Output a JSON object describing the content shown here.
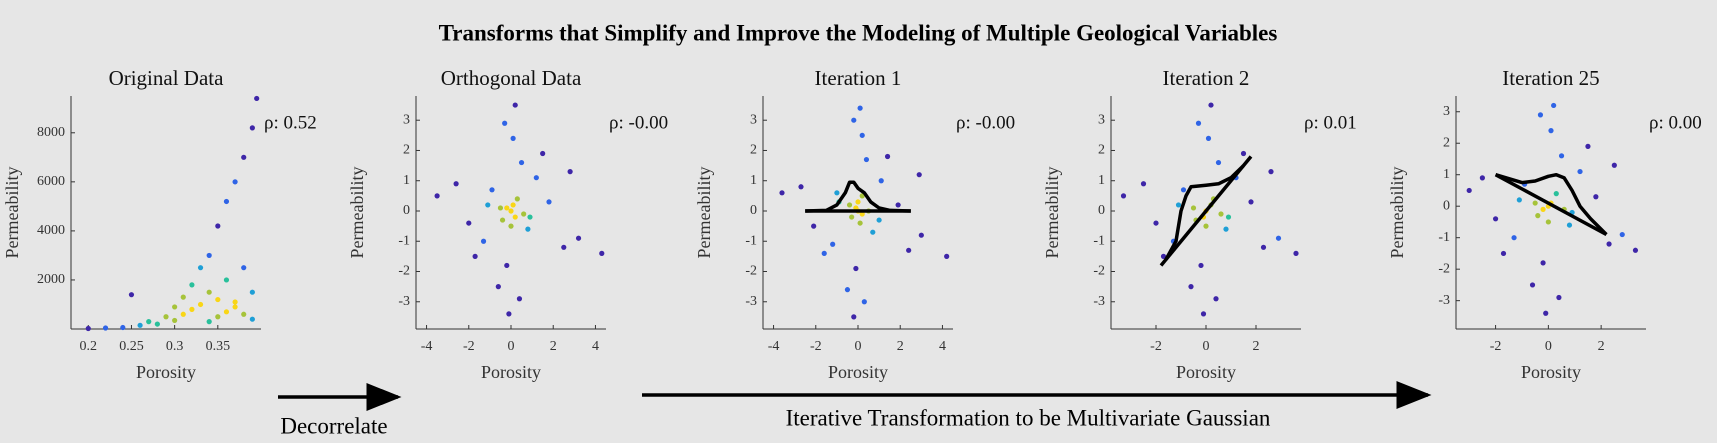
{
  "title": "Transforms that Simplify and Improve the Modeling of Multiple Geological Variables",
  "annotations": [
    "Decorrelate",
    "Iterative Transformation to be Multivariate Gaussian"
  ],
  "colormap": [
    "#3e26a8",
    "#2f64e6",
    "#1f9fd6",
    "#29c09b",
    "#a6c33a",
    "#f9d616"
  ],
  "chart_data": [
    {
      "type": "scatter",
      "title": "Original Data",
      "x_label": "Porosity",
      "y_label": "Permeability",
      "annotation": "ρ: 0.52",
      "xlim": [
        0.18,
        0.4
      ],
      "xticks": [
        0.2,
        0.25,
        0.3,
        0.35
      ],
      "ylim": [
        0,
        9500
      ],
      "yticks": [
        2000,
        4000,
        6000,
        8000
      ],
      "x": [
        0.2,
        0.22,
        0.24,
        0.25,
        0.26,
        0.27,
        0.28,
        0.29,
        0.3,
        0.3,
        0.31,
        0.31,
        0.32,
        0.32,
        0.33,
        0.33,
        0.34,
        0.34,
        0.35,
        0.35,
        0.36,
        0.36,
        0.37,
        0.37,
        0.38,
        0.38,
        0.39,
        0.39,
        0.395,
        0.39,
        0.36,
        0.37,
        0.38,
        0.35,
        0.34
      ],
      "y": [
        20,
        40,
        60,
        1400,
        150,
        300,
        200,
        500,
        350,
        900,
        600,
        1300,
        800,
        1800,
        1000,
        2500,
        1500,
        3000,
        1200,
        4200,
        2000,
        5200,
        900,
        6000,
        2500,
        7000,
        1500,
        8200,
        9400,
        400,
        700,
        1100,
        600,
        500,
        300
      ],
      "lines": []
    },
    {
      "type": "scatter",
      "title": "Orthogonal Data",
      "x_label": "Porosity",
      "y_label": "Permeability",
      "annotation": "ρ: -0.00",
      "xlim": [
        -4.5,
        4.5
      ],
      "xticks": [
        -4,
        -2,
        0,
        2,
        4
      ],
      "ylim": [
        -3.9,
        3.8
      ],
      "yticks": [
        -3,
        -2,
        -1,
        0,
        1,
        2,
        3
      ],
      "x": [
        0,
        0.3,
        -0.4,
        0.8,
        -0.9,
        1.2,
        -1.3,
        0.5,
        -0.2,
        1.8,
        -2.0,
        2.5,
        -2.6,
        0.1,
        -0.6,
        0.9,
        -1.1,
        3.2,
        -3.5,
        4.3,
        0.2,
        -0.1,
        1.5,
        -1.7,
        0.6,
        -0.5,
        2.8,
        -0.3,
        0.4,
        0,
        0.1,
        -0.2,
        0.2
      ],
      "y": [
        0,
        0.4,
        -0.3,
        -0.6,
        0.7,
        1.1,
        -1.0,
        1.6,
        -1.8,
        0.3,
        -0.4,
        -1.2,
        0.9,
        2.4,
        -2.5,
        -0.2,
        0.2,
        -0.9,
        0.5,
        -1.4,
        3.5,
        -3.4,
        1.9,
        -1.5,
        -0.1,
        0.1,
        1.3,
        2.9,
        -2.9,
        -0.5,
        0.2,
        0.1,
        -0.2
      ],
      "lines": []
    },
    {
      "type": "scatter",
      "title": "Iteration 1",
      "x_label": "Porosity",
      "y_label": "Permeability",
      "annotation": "ρ: -0.00",
      "xlim": [
        -4.5,
        4.5
      ],
      "xticks": [
        -4,
        -2,
        0,
        2,
        4
      ],
      "ylim": [
        -3.9,
        3.8
      ],
      "yticks": [
        -3,
        -2,
        -1,
        0,
        1,
        2,
        3
      ],
      "x": [
        0,
        0.2,
        -0.3,
        0.7,
        -1.0,
        1.1,
        -1.2,
        0.4,
        -0.1,
        1.9,
        -2.1,
        2.4,
        -2.7,
        0.2,
        -0.5,
        1.0,
        -0.9,
        3.0,
        -3.6,
        4.2,
        0.1,
        -0.2,
        1.4,
        -1.6,
        0.5,
        -0.4,
        2.9,
        -0.2,
        0.3,
        0.1,
        -0.1,
        0.2,
        0
      ],
      "y": [
        0,
        0.5,
        -0.2,
        -0.7,
        0.6,
        1.0,
        -1.1,
        1.7,
        -1.9,
        0.2,
        -0.5,
        -1.3,
        0.8,
        2.5,
        -2.6,
        -0.3,
        0.3,
        -0.8,
        0.6,
        -1.5,
        3.4,
        -3.5,
        1.8,
        -1.4,
        0,
        0.2,
        1.2,
        3.0,
        -3.0,
        -0.4,
        0.1,
        -0.1,
        0.3
      ],
      "lines": [
        {
          "x": [
            -2.5,
            2.5
          ],
          "y": [
            0,
            0
          ]
        },
        {
          "x": [
            -2.5,
            -1.5,
            -1,
            -0.6,
            -0.4,
            -0.2,
            0,
            0.3,
            0.6,
            1,
            1.5,
            2.5
          ],
          "y": [
            0,
            0.02,
            0.2,
            0.6,
            0.95,
            0.95,
            0.75,
            0.6,
            0.3,
            0.1,
            0.02,
            0
          ]
        }
      ]
    },
    {
      "type": "scatter",
      "title": "Iteration 2",
      "x_label": "Porosity",
      "y_label": "Permeability",
      "annotation": "ρ: 0.01",
      "xlim": [
        -3.8,
        3.8
      ],
      "xticks": [
        -2,
        0,
        2
      ],
      "ylim": [
        -3.9,
        3.8
      ],
      "yticks": [
        -3,
        -2,
        -1,
        0,
        1,
        2,
        3
      ],
      "x": [
        0,
        0.3,
        -0.4,
        0.8,
        -0.9,
        1.2,
        -1.3,
        0.5,
        -0.2,
        1.8,
        -2.0,
        2.3,
        -2.5,
        0.1,
        -0.6,
        0.9,
        -1.1,
        2.9,
        -3.3,
        3.6,
        0.2,
        -0.1,
        1.5,
        -1.7,
        0.6,
        -0.5,
        2.6,
        -0.3,
        0.4,
        0,
        0.2,
        -0.1
      ],
      "y": [
        0,
        0.4,
        -0.3,
        -0.6,
        0.7,
        1.1,
        -1.0,
        1.6,
        -1.8,
        0.3,
        -0.4,
        -1.2,
        0.9,
        2.4,
        -2.5,
        -0.2,
        0.2,
        -0.9,
        0.5,
        -1.4,
        3.5,
        -3.4,
        1.9,
        -1.5,
        -0.1,
        0.1,
        1.3,
        2.9,
        -2.9,
        -0.5,
        0.2,
        -0.2
      ],
      "lines": [
        {
          "x": [
            -1.8,
            1.8
          ],
          "y": [
            -1.8,
            1.8
          ]
        },
        {
          "x": [
            -1.6,
            -1.2,
            -1.0,
            -0.8,
            -0.6,
            0,
            0.5,
            1,
            1.5
          ],
          "y": [
            -1.6,
            -1.0,
            0,
            0.5,
            0.8,
            0.85,
            0.9,
            1.1,
            1.5
          ]
        }
      ]
    },
    {
      "type": "scatter",
      "title": "Iteration 25",
      "x_label": "Porosity",
      "y_label": "Permeability",
      "annotation": "ρ: 0.00",
      "xlim": [
        -3.5,
        3.7
      ],
      "xticks": [
        -2,
        0,
        2
      ],
      "ylim": [
        -3.9,
        3.5
      ],
      "yticks": [
        -3,
        -2,
        -1,
        0,
        1,
        2,
        3
      ],
      "x": [
        0,
        0.3,
        -0.4,
        0.8,
        -0.9,
        1.2,
        -1.3,
        0.5,
        -0.2,
        1.8,
        -2.0,
        2.3,
        -2.5,
        0.1,
        -0.6,
        0.9,
        -1.1,
        2.8,
        -3.0,
        3.3,
        0.2,
        -0.1,
        1.5,
        -1.7,
        0.6,
        -0.5,
        2.5,
        -0.3,
        0.4,
        0,
        0.1,
        -0.2
      ],
      "y": [
        0,
        0.4,
        -0.3,
        -0.6,
        0.7,
        1.1,
        -1.0,
        1.6,
        -1.8,
        0.3,
        -0.4,
        -1.2,
        0.9,
        2.4,
        -2.5,
        -0.2,
        0.2,
        -0.9,
        0.5,
        -1.4,
        3.2,
        -3.4,
        1.9,
        -1.5,
        -0.1,
        0.1,
        1.3,
        2.9,
        -2.9,
        -0.5,
        0.1,
        -0.1
      ],
      "lines": [
        {
          "x": [
            -2,
            2.2
          ],
          "y": [
            1,
            -0.9
          ]
        },
        {
          "x": [
            -2,
            -1,
            -0.5,
            0,
            0.3,
            0.6,
            0.9,
            1.2,
            1.6,
            2.2
          ],
          "y": [
            1,
            0.75,
            0.8,
            0.95,
            1.0,
            0.9,
            0.5,
            0,
            -0.4,
            -0.9
          ]
        }
      ]
    }
  ]
}
